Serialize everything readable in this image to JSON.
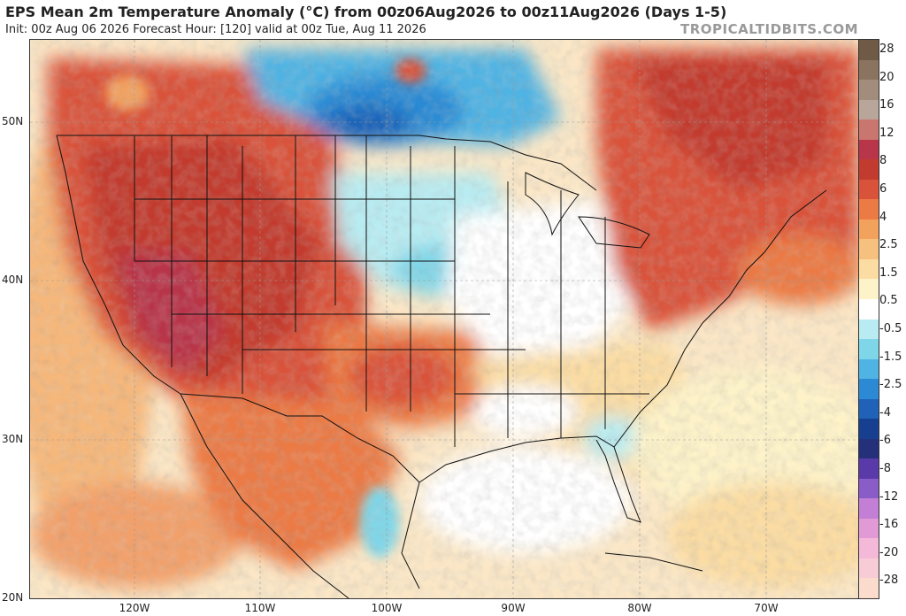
{
  "header": {
    "title": "EPS Mean 2m Temperature Anomaly (°C) from 00z06Aug2026 to 00z11Aug2026 (Days 1-5)",
    "subtitle": "Init: 00z Aug 06 2026   Forecast Hour: [120]   valid at 00z Tue, Aug 11 2026",
    "brand": "TROPICALTIDBITS.COM"
  },
  "axes": {
    "lat_labels": [
      "50N",
      "40N",
      "30N",
      "20N"
    ],
    "lon_labels": [
      "120W",
      "110W",
      "100W",
      "90W",
      "80W",
      "70W"
    ]
  },
  "colorbar": {
    "labels": [
      "28",
      "20",
      "16",
      "12",
      "8",
      "6",
      "4",
      "2.5",
      "1.5",
      "0.5",
      "-0.5",
      "-1.5",
      "-2.5",
      "-4",
      "-6",
      "-8",
      "-12",
      "-16",
      "-20",
      "-28"
    ],
    "colors": [
      "#6e5a45",
      "#8a7460",
      "#a28d7c",
      "#b9a69a",
      "#c9766f",
      "#b8354a",
      "#c23b2f",
      "#d9533a",
      "#eb7a44",
      "#f3a25e",
      "#f6c07e",
      "#fbdca2",
      "#fdf2c8",
      "#ffffff",
      "#b8ecf2",
      "#7fd6e8",
      "#4fb3e3",
      "#2c8ad4",
      "#1f62b8",
      "#173f8f",
      "#24307a",
      "#5a3aa8",
      "#8a5cc7",
      "#c27fd5",
      "#e19ad6",
      "#f4b8d9",
      "#f7ccd6",
      "#fbdccc"
    ]
  }
}
